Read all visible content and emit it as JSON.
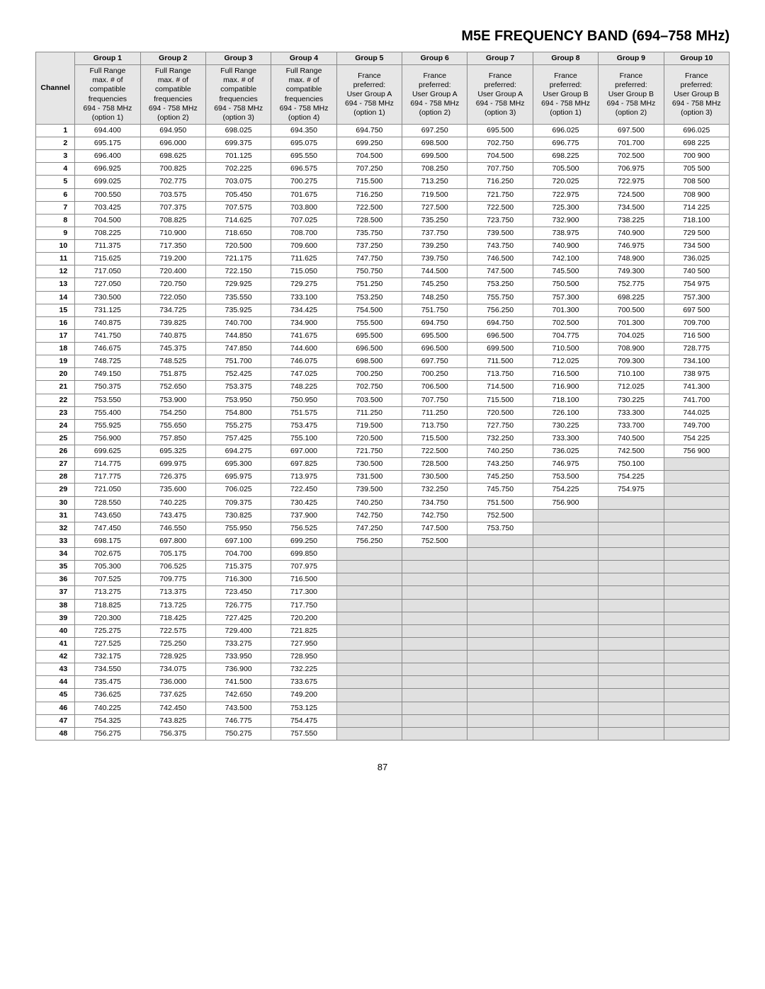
{
  "title": "M5E FREQUENCY BAND (694–758 MHz)",
  "pageNumber": "87",
  "channelHeader": "Channel",
  "groups": [
    {
      "name": "Group 1",
      "sub": "Full Range\nmax. # of\ncompatible\nfrequencies\n694 - 758 MHz\n(option 1)"
    },
    {
      "name": "Group 2",
      "sub": "Full Range\nmax. # of\ncompatible\nfrequencies\n694 - 758 MHz\n(option 2)"
    },
    {
      "name": "Group 3",
      "sub": "Full Range\nmax. # of\ncompatible\nfrequencies\n694 - 758 MHz\n(option 3)"
    },
    {
      "name": "Group 4",
      "sub": "Full Range\nmax. # of\ncompatible\nfrequencies\n694 - 758 MHz\n(option 4)"
    },
    {
      "name": "Group 5",
      "sub": "France\npreferred:\nUser Group A\n694 - 758 MHz\n(option 1)"
    },
    {
      "name": "Group 6",
      "sub": "France\npreferred:\nUser Group A\n694 - 758 MHz\n(option 2)"
    },
    {
      "name": "Group 7",
      "sub": "France\npreferred:\nUser Group A\n694 - 758 MHz\n(option 3)"
    },
    {
      "name": "Group 8",
      "sub": "France\npreferred:\nUser Group B\n694 - 758 MHz\n(option 1)"
    },
    {
      "name": "Group 9",
      "sub": "France\npreferred:\nUser Group B\n694 - 758 MHz\n(option 2)"
    },
    {
      "name": "Group 10",
      "sub": "France\npreferred:\nUser Group B\n694 - 758 MHz\n(option 3)"
    }
  ],
  "rows": [
    [
      "1",
      "694.400",
      "694.950",
      "698.025",
      "694.350",
      "694.750",
      "697.250",
      "695.500",
      "696.025",
      "697.500",
      "696.025"
    ],
    [
      "2",
      "695.175",
      "696.000",
      "699.375",
      "695.075",
      "699.250",
      "698.500",
      "702.750",
      "696.775",
      "701.700",
      "698 225"
    ],
    [
      "3",
      "696.400",
      "698.625",
      "701.125",
      "695.550",
      "704.500",
      "699.500",
      "704.500",
      "698.225",
      "702.500",
      "700 900"
    ],
    [
      "4",
      "696.925",
      "700.825",
      "702.225",
      "696.575",
      "707.250",
      "708.250",
      "707.750",
      "705.500",
      "706.975",
      "705 500"
    ],
    [
      "5",
      "699.025",
      "702.775",
      "703.075",
      "700.275",
      "715.500",
      "713.250",
      "716.250",
      "720.025",
      "722.975",
      "708 500"
    ],
    [
      "6",
      "700.550",
      "703.575",
      "705.450",
      "701.675",
      "716.250",
      "719.500",
      "721.750",
      "722.975",
      "724.500",
      "708 900"
    ],
    [
      "7",
      "703.425",
      "707.375",
      "707.575",
      "703.800",
      "722.500",
      "727.500",
      "722.500",
      "725.300",
      "734.500",
      "714 225"
    ],
    [
      "8",
      "704.500",
      "708.825",
      "714.625",
      "707.025",
      "728.500",
      "735.250",
      "723.750",
      "732.900",
      "738.225",
      "718.100"
    ],
    [
      "9",
      "708.225",
      "710.900",
      "718.650",
      "708.700",
      "735.750",
      "737.750",
      "739.500",
      "738.975",
      "740.900",
      "729 500"
    ],
    [
      "10",
      "711.375",
      "717.350",
      "720.500",
      "709.600",
      "737.250",
      "739.250",
      "743.750",
      "740.900",
      "746.975",
      "734 500"
    ],
    [
      "11",
      "715.625",
      "719.200",
      "721.175",
      "711.625",
      "747.750",
      "739.750",
      "746.500",
      "742.100",
      "748.900",
      "736.025"
    ],
    [
      "12",
      "717.050",
      "720.400",
      "722.150",
      "715.050",
      "750.750",
      "744.500",
      "747.500",
      "745.500",
      "749.300",
      "740 500"
    ],
    [
      "13",
      "727.050",
      "720.750",
      "729.925",
      "729.275",
      "751.250",
      "745.250",
      "753.250",
      "750.500",
      "752.775",
      "754 975"
    ],
    [
      "14",
      "730.500",
      "722.050",
      "735.550",
      "733.100",
      "753.250",
      "748.250",
      "755.750",
      "757.300",
      "698.225",
      "757.300"
    ],
    [
      "15",
      "731.125",
      "734.725",
      "735.925",
      "734.425",
      "754.500",
      "751.750",
      "756.250",
      "701.300",
      "700.500",
      "697 500"
    ],
    [
      "16",
      "740.875",
      "739.825",
      "740.700",
      "734.900",
      "755.500",
      "694.750",
      "694.750",
      "702.500",
      "701.300",
      "709.700"
    ],
    [
      "17",
      "741.750",
      "740.875",
      "744.850",
      "741.675",
      "695.500",
      "695.500",
      "696.500",
      "704.775",
      "704.025",
      "716 500"
    ],
    [
      "18",
      "746.675",
      "745.375",
      "747.850",
      "744.600",
      "696.500",
      "696.500",
      "699.500",
      "710.500",
      "708.900",
      "728.775"
    ],
    [
      "19",
      "748.725",
      "748.525",
      "751.700",
      "746.075",
      "698.500",
      "697.750",
      "711.500",
      "712.025",
      "709.300",
      "734.100"
    ],
    [
      "20",
      "749.150",
      "751.875",
      "752.425",
      "747.025",
      "700.250",
      "700.250",
      "713.750",
      "716.500",
      "710.100",
      "738 975"
    ],
    [
      "21",
      "750.375",
      "752.650",
      "753.375",
      "748.225",
      "702.750",
      "706.500",
      "714.500",
      "716.900",
      "712.025",
      "741.300"
    ],
    [
      "22",
      "753.550",
      "753.900",
      "753.950",
      "750.950",
      "703.500",
      "707.750",
      "715.500",
      "718.100",
      "730.225",
      "741.700"
    ],
    [
      "23",
      "755.400",
      "754.250",
      "754.800",
      "751.575",
      "711.250",
      "711.250",
      "720.500",
      "726.100",
      "733.300",
      "744.025"
    ],
    [
      "24",
      "755.925",
      "755.650",
      "755.275",
      "753.475",
      "719.500",
      "713.750",
      "727.750",
      "730.225",
      "733.700",
      "749.700"
    ],
    [
      "25",
      "756.900",
      "757.850",
      "757.425",
      "755.100",
      "720.500",
      "715.500",
      "732.250",
      "733.300",
      "740.500",
      "754 225"
    ],
    [
      "26",
      "699.625",
      "695.325",
      "694.275",
      "697.000",
      "721.750",
      "722.500",
      "740.250",
      "736.025",
      "742.500",
      "756 900"
    ],
    [
      "27",
      "714.775",
      "699.975",
      "695.300",
      "697.825",
      "730.500",
      "728.500",
      "743.250",
      "746.975",
      "750.100",
      ""
    ],
    [
      "28",
      "717.775",
      "726.375",
      "695.975",
      "713.975",
      "731.500",
      "730.500",
      "745.250",
      "753.500",
      "754.225",
      ""
    ],
    [
      "29",
      "721.050",
      "735.600",
      "706.025",
      "722.450",
      "739.500",
      "732.250",
      "745.750",
      "754.225",
      "754.975",
      ""
    ],
    [
      "30",
      "728.550",
      "740.225",
      "709.375",
      "730.425",
      "740.250",
      "734.750",
      "751.500",
      "756.900",
      "",
      ""
    ],
    [
      "31",
      "743.650",
      "743.475",
      "730.825",
      "737.900",
      "742.750",
      "742.750",
      "752.500",
      "",
      "",
      ""
    ],
    [
      "32",
      "747.450",
      "746.550",
      "755.950",
      "756.525",
      "747.250",
      "747.500",
      "753.750",
      "",
      "",
      ""
    ],
    [
      "33",
      "698.175",
      "697.800",
      "697.100",
      "699.250",
      "756.250",
      "752.500",
      "",
      "",
      "",
      ""
    ],
    [
      "34",
      "702.675",
      "705.175",
      "704.700",
      "699.850",
      "",
      "",
      "",
      "",
      "",
      ""
    ],
    [
      "35",
      "705.300",
      "706.525",
      "715.375",
      "707.975",
      "",
      "",
      "",
      "",
      "",
      ""
    ],
    [
      "36",
      "707.525",
      "709.775",
      "716.300",
      "716.500",
      "",
      "",
      "",
      "",
      "",
      ""
    ],
    [
      "37",
      "713.275",
      "713.375",
      "723.450",
      "717.300",
      "",
      "",
      "",
      "",
      "",
      ""
    ],
    [
      "38",
      "718.825",
      "713.725",
      "726.775",
      "717.750",
      "",
      "",
      "",
      "",
      "",
      ""
    ],
    [
      "39",
      "720.300",
      "718.425",
      "727.425",
      "720.200",
      "",
      "",
      "",
      "",
      "",
      ""
    ],
    [
      "40",
      "725.275",
      "722.575",
      "729.400",
      "721.825",
      "",
      "",
      "",
      "",
      "",
      ""
    ],
    [
      "41",
      "727.525",
      "725.250",
      "733.275",
      "727.950",
      "",
      "",
      "",
      "",
      "",
      ""
    ],
    [
      "42",
      "732.175",
      "728.925",
      "733.950",
      "728.950",
      "",
      "",
      "",
      "",
      "",
      ""
    ],
    [
      "43",
      "734.550",
      "734.075",
      "736.900",
      "732.225",
      "",
      "",
      "",
      "",
      "",
      ""
    ],
    [
      "44",
      "735.475",
      "736.000",
      "741.500",
      "733.675",
      "",
      "",
      "",
      "",
      "",
      ""
    ],
    [
      "45",
      "736.625",
      "737.625",
      "742.650",
      "749.200",
      "",
      "",
      "",
      "",
      "",
      ""
    ],
    [
      "46",
      "740.225",
      "742.450",
      "743.500",
      "753.125",
      "",
      "",
      "",
      "",
      "",
      ""
    ],
    [
      "47",
      "754.325",
      "743.825",
      "746.775",
      "754.475",
      "",
      "",
      "",
      "",
      "",
      ""
    ],
    [
      "48",
      "756.275",
      "756.375",
      "750.275",
      "757.550",
      "",
      "",
      "",
      "",
      "",
      ""
    ]
  ]
}
